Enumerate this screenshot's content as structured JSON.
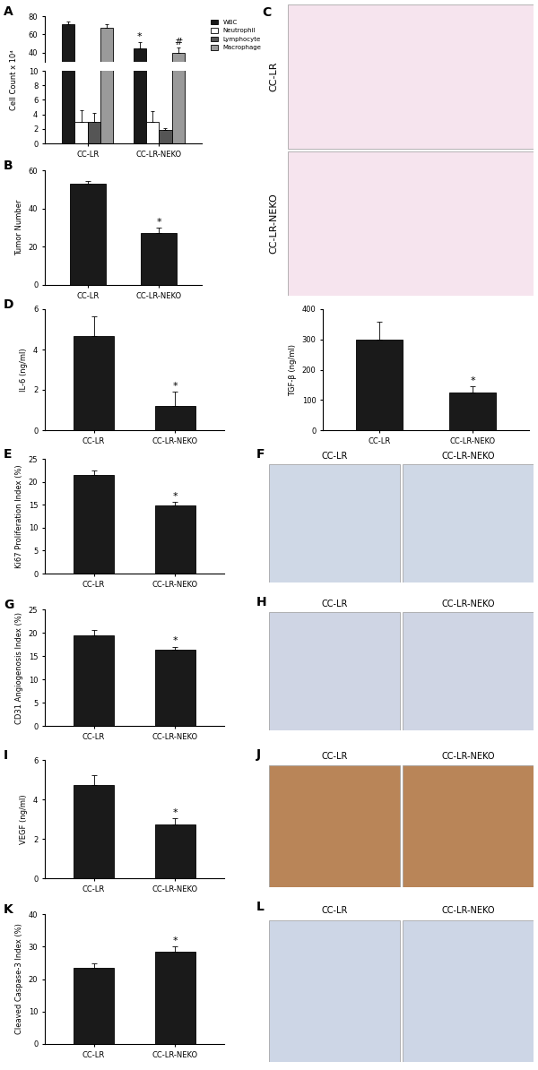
{
  "chart_data": [
    {
      "panel": "A",
      "type": "bar",
      "ylabel": "Cell Count x 10⁴",
      "categories": [
        "CC-LR",
        "CC-LR-NEKO"
      ],
      "series": [
        {
          "name": "WBC",
          "color": "#1a1a1a",
          "values": [
            71,
            45
          ],
          "errors": [
            3,
            7
          ]
        },
        {
          "name": "Neutrophil",
          "color": "#ffffff",
          "values": [
            3,
            3
          ],
          "errors": [
            1.6,
            1.5
          ]
        },
        {
          "name": "Lymphocyte",
          "color": "#555555",
          "values": [
            3,
            1.8
          ],
          "errors": [
            1.2,
            0.3
          ]
        },
        {
          "name": "Macrophage",
          "color": "#9a9a9a",
          "values": [
            67,
            40
          ],
          "errors": [
            4,
            6
          ]
        }
      ],
      "broken_axis": [
        {
          "ylim": [
            0,
            10
          ],
          "yticks": [
            0,
            2,
            4,
            6,
            8,
            10
          ]
        },
        {
          "ylim": [
            30,
            80
          ],
          "yticks": [
            40,
            60,
            80
          ]
        }
      ],
      "legend": "right",
      "annotations": [
        {
          "category": "CC-LR-NEKO",
          "series": "WBC",
          "text": "*"
        },
        {
          "category": "CC-LR-NEKO",
          "series": "Macrophage",
          "text": "#"
        }
      ]
    },
    {
      "panel": "B",
      "type": "bar",
      "ylabel": "Tumor Number",
      "categories": [
        "CC-LR",
        "CC-LR-NEKO"
      ],
      "values": [
        53,
        27
      ],
      "errors": [
        1.5,
        3
      ],
      "color": "#1a1a1a",
      "ylim": [
        0,
        60
      ],
      "yticks": [
        0,
        20,
        40,
        60
      ],
      "annotations": [
        {
          "category": "CC-LR-NEKO",
          "text": "*"
        }
      ]
    },
    {
      "panel": "D",
      "type": "bar",
      "ylabel": "IL-6 (ng/ml)",
      "categories": [
        "CC-LR",
        "CC-LR-NEKO"
      ],
      "values": [
        4.65,
        1.2
      ],
      "errors": [
        1.0,
        0.7
      ],
      "color": "#1a1a1a",
      "ylim": [
        0,
        6
      ],
      "yticks": [
        0,
        2,
        4,
        6
      ],
      "annotations": [
        {
          "category": "CC-LR-NEKO",
          "text": "*"
        }
      ]
    },
    {
      "type": "bar",
      "ylabel": "TGF-β (ng/ml)",
      "categories": [
        "CC-LR",
        "CC-LR-NEKO"
      ],
      "values": [
        300,
        125
      ],
      "errors": [
        60,
        20
      ],
      "color": "#1a1a1a",
      "ylim": [
        0,
        400
      ],
      "yticks": [
        0,
        100,
        200,
        300,
        400
      ],
      "annotations": [
        {
          "category": "CC-LR-NEKO",
          "text": "*"
        }
      ]
    },
    {
      "panel": "E",
      "type": "bar",
      "ylabel": "Ki67 Proliferation Index (%)",
      "categories": [
        "CC-LR",
        "CC-LR-NEKO"
      ],
      "values": [
        21.5,
        14.8
      ],
      "errors": [
        1.0,
        0.8
      ],
      "color": "#1a1a1a",
      "ylim": [
        0,
        25
      ],
      "yticks": [
        0,
        5,
        10,
        15,
        20,
        25
      ],
      "annotations": [
        {
          "category": "CC-LR-NEKO",
          "text": "*"
        }
      ]
    },
    {
      "panel": "G",
      "type": "bar",
      "ylabel": "CD31 Angiogenosis Index (%)",
      "categories": [
        "CC-LR",
        "CC-LR-NEKO"
      ],
      "values": [
        19.5,
        16.4
      ],
      "errors": [
        1.0,
        0.6
      ],
      "color": "#1a1a1a",
      "ylim": [
        0,
        25
      ],
      "yticks": [
        0,
        5,
        10,
        15,
        20,
        25
      ],
      "annotations": [
        {
          "category": "CC-LR-NEKO",
          "text": "*"
        }
      ]
    },
    {
      "panel": "I",
      "type": "bar",
      "ylabel": "VEGF (ng/ml)",
      "categories": [
        "CC-LR",
        "CC-LR-NEKO"
      ],
      "values": [
        4.75,
        2.75
      ],
      "errors": [
        0.5,
        0.3
      ],
      "color": "#1a1a1a",
      "ylim": [
        0,
        6
      ],
      "yticks": [
        0,
        2,
        4,
        6
      ],
      "annotations": [
        {
          "category": "CC-LR-NEKO",
          "text": "*"
        }
      ]
    },
    {
      "panel": "K",
      "type": "bar",
      "ylabel": "Cleaved Caspase-3 Index (%)",
      "categories": [
        "CC-LR",
        "CC-LR-NEKO"
      ],
      "values": [
        23.5,
        28.3
      ],
      "errors": [
        1.3,
        1.7
      ],
      "color": "#1a1a1a",
      "ylim": [
        0,
        40
      ],
      "yticks": [
        0,
        10,
        20,
        30,
        40
      ],
      "annotations": [
        {
          "category": "CC-LR-NEKO",
          "text": "*"
        }
      ]
    }
  ],
  "images": [
    {
      "panel": "C",
      "orientation": "vertical",
      "labels": [
        "CC-LR",
        "CC-LR-NEKO"
      ],
      "color": "#f6e4ee"
    },
    {
      "panel": "F",
      "orientation": "horizontal",
      "labels": [
        "CC-LR",
        "CC-LR-NEKO"
      ],
      "color": "#cfd8e6"
    },
    {
      "panel": "H",
      "orientation": "horizontal",
      "labels": [
        "CC-LR",
        "CC-LR-NEKO"
      ],
      "color": "#cfd5e4"
    },
    {
      "panel": "J",
      "orientation": "horizontal",
      "labels": [
        "CC-LR",
        "CC-LR-NEKO"
      ],
      "color": "#b98558"
    },
    {
      "panel": "L",
      "orientation": "horizontal",
      "labels": [
        "CC-LR",
        "CC-LR-NEKO"
      ],
      "color": "#cdd6e6"
    }
  ]
}
